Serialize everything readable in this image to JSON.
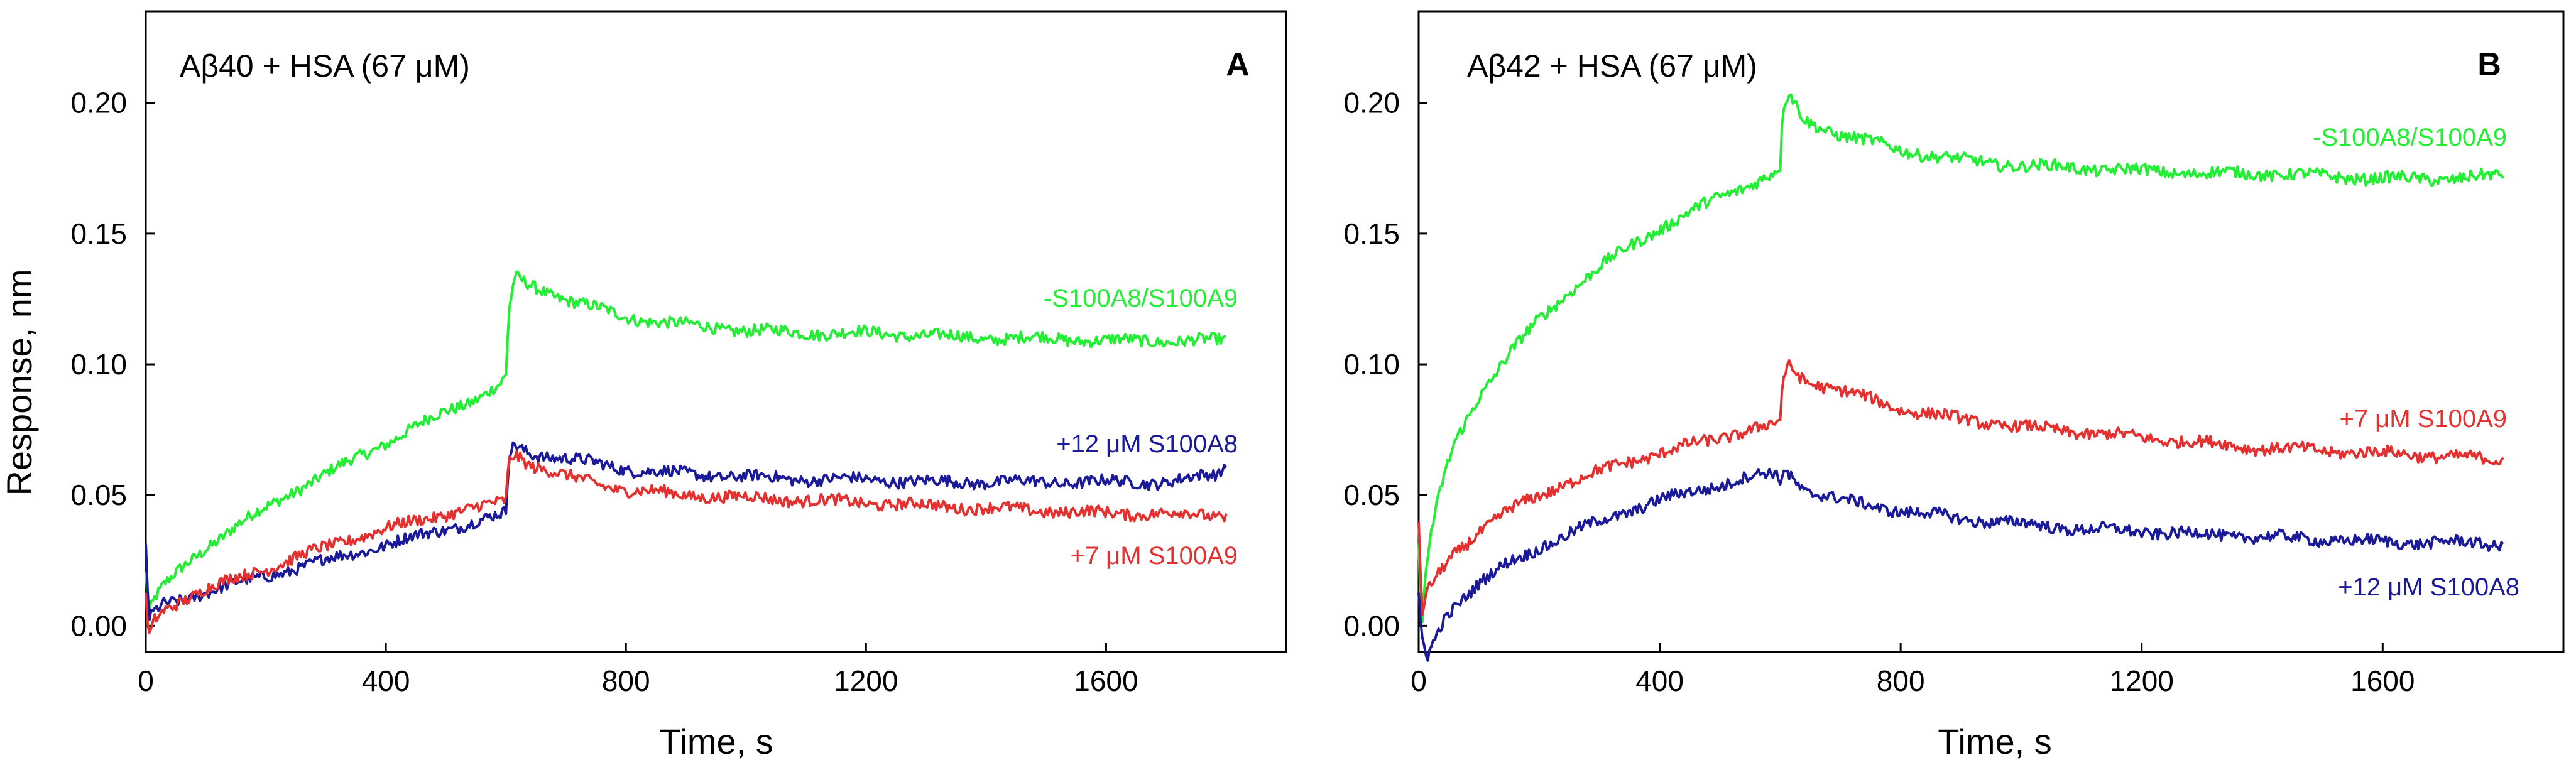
{
  "ylabel": "Response, nm",
  "xlabel": "Time, s",
  "colors": {
    "green": "#22ee33",
    "red": "#e53030",
    "blue": "#1a1a9a"
  },
  "chart_data": [
    {
      "type": "line",
      "panel": "A",
      "title": "Aβ40 + HSA (67 μM)",
      "xlabel": "Time, s",
      "ylabel": "Response, nm",
      "xlim": [
        0,
        1900
      ],
      "ylim": [
        -0.01,
        0.235
      ],
      "xticks": [
        0,
        400,
        800,
        1200,
        1600
      ],
      "yticks": [
        0.0,
        0.05,
        0.1,
        0.15,
        0.2
      ],
      "xtick_labels": [
        "0",
        "400",
        "800",
        "1200",
        "1600"
      ],
      "ytick_labels": [
        "0.00",
        "0.05",
        "0.10",
        "0.15",
        "0.20"
      ],
      "series": [
        {
          "name": "-S100A8/S100A9",
          "label": "-S100A8/S100A9",
          "color": "#22ee33",
          "x": [
            0,
            5,
            15,
            30,
            60,
            100,
            150,
            200,
            250,
            300,
            350,
            400,
            450,
            500,
            550,
            590,
            600,
            605,
            615,
            640,
            700,
            800,
            900,
            1000,
            1100,
            1200,
            1300,
            1400,
            1500,
            1600,
            1700,
            1800
          ],
          "y": [
            0.02,
            0.005,
            0.01,
            0.015,
            0.022,
            0.03,
            0.038,
            0.045,
            0.052,
            0.058,
            0.064,
            0.07,
            0.076,
            0.082,
            0.087,
            0.092,
            0.095,
            0.12,
            0.133,
            0.13,
            0.125,
            0.118,
            0.115,
            0.113,
            0.112,
            0.112,
            0.111,
            0.11,
            0.11,
            0.109,
            0.109,
            0.109
          ]
        },
        {
          "name": "+12 μM S100A8",
          "label": "+12 μM S100A8",
          "color": "#1a1a9a",
          "x": [
            0,
            5,
            15,
            30,
            60,
            100,
            150,
            200,
            250,
            300,
            350,
            400,
            450,
            500,
            550,
            590,
            600,
            605,
            615,
            640,
            700,
            800,
            900,
            1000,
            1100,
            1200,
            1300,
            1400,
            1500,
            1600,
            1700,
            1790,
            1800
          ],
          "y": [
            0.03,
            0.002,
            0.005,
            0.008,
            0.01,
            0.013,
            0.016,
            0.019,
            0.022,
            0.025,
            0.028,
            0.031,
            0.034,
            0.037,
            0.04,
            0.042,
            0.043,
            0.065,
            0.069,
            0.066,
            0.064,
            0.06,
            0.058,
            0.057,
            0.056,
            0.056,
            0.055,
            0.055,
            0.055,
            0.055,
            0.055,
            0.058,
            0.063
          ]
        },
        {
          "name": "+7 μM S100A9",
          "label": "+7 μM S100A9",
          "color": "#e53030",
          "x": [
            0,
            5,
            15,
            30,
            60,
            100,
            150,
            200,
            250,
            300,
            350,
            400,
            450,
            500,
            550,
            590,
            600,
            605,
            615,
            640,
            700,
            800,
            900,
            1000,
            1100,
            1200,
            1300,
            1400,
            1500,
            1600,
            1700,
            1800
          ],
          "y": [
            0.01,
            -0.005,
            0.002,
            0.006,
            0.01,
            0.014,
            0.018,
            0.022,
            0.026,
            0.03,
            0.034,
            0.037,
            0.04,
            0.043,
            0.045,
            0.047,
            0.048,
            0.063,
            0.066,
            0.062,
            0.057,
            0.052,
            0.05,
            0.049,
            0.048,
            0.047,
            0.046,
            0.045,
            0.044,
            0.043,
            0.043,
            0.042
          ]
        }
      ]
    },
    {
      "type": "line",
      "panel": "B",
      "title": "Aβ42 + HSA (67 μM)",
      "xlabel": "Time, s",
      "ylabel": "",
      "xlim": [
        0,
        1900
      ],
      "ylim": [
        -0.01,
        0.235
      ],
      "xticks": [
        0,
        400,
        800,
        1200,
        1600
      ],
      "yticks": [
        0.0,
        0.05,
        0.1,
        0.15,
        0.2
      ],
      "xtick_labels": [
        "0",
        "400",
        "800",
        "1200",
        "1600"
      ],
      "ytick_labels": [
        "0.00",
        "0.05",
        "0.10",
        "0.15",
        "0.20"
      ],
      "series": [
        {
          "name": "-S100A8/S100A9",
          "label": "-S100A8/S100A9",
          "color": "#22ee33",
          "x": [
            0,
            5,
            10,
            20,
            40,
            60,
            100,
            150,
            200,
            250,
            300,
            350,
            400,
            450,
            500,
            550,
            590,
            600,
            605,
            615,
            640,
            700,
            800,
            900,
            1000,
            1100,
            1200,
            1300,
            1400,
            1500,
            1600,
            1700,
            1800
          ],
          "y": [
            0.03,
            0.0,
            0.015,
            0.035,
            0.055,
            0.07,
            0.088,
            0.104,
            0.117,
            0.128,
            0.137,
            0.145,
            0.152,
            0.158,
            0.164,
            0.169,
            0.173,
            0.175,
            0.198,
            0.203,
            0.193,
            0.188,
            0.182,
            0.178,
            0.176,
            0.175,
            0.174,
            0.173,
            0.173,
            0.172,
            0.171,
            0.171,
            0.172
          ]
        },
        {
          "name": "+7 μM S100A9",
          "label": "+7 μM S100A9",
          "color": "#e53030",
          "x": [
            0,
            5,
            10,
            20,
            40,
            60,
            100,
            150,
            200,
            250,
            300,
            350,
            400,
            450,
            500,
            550,
            590,
            600,
            605,
            615,
            640,
            700,
            800,
            900,
            1000,
            1100,
            1200,
            1300,
            1400,
            1500,
            1600,
            1700,
            1800
          ],
          "y": [
            0.04,
            0.002,
            0.01,
            0.015,
            0.022,
            0.028,
            0.036,
            0.044,
            0.05,
            0.055,
            0.059,
            0.063,
            0.066,
            0.069,
            0.072,
            0.075,
            0.077,
            0.078,
            0.095,
            0.099,
            0.094,
            0.09,
            0.083,
            0.079,
            0.076,
            0.074,
            0.072,
            0.07,
            0.068,
            0.067,
            0.066,
            0.065,
            0.063
          ]
        },
        {
          "name": "+12 μM S100A8",
          "label": "+12 μM S100A8",
          "color": "#1a1a9a",
          "x": [
            0,
            5,
            15,
            25,
            40,
            60,
            100,
            150,
            200,
            250,
            300,
            350,
            400,
            450,
            500,
            550,
            590,
            600,
            605,
            615,
            640,
            700,
            800,
            900,
            1000,
            1100,
            1200,
            1300,
            1400,
            1500,
            1600,
            1700,
            1800
          ],
          "y": [
            0.01,
            -0.005,
            -0.012,
            -0.006,
            0.002,
            0.008,
            0.016,
            0.024,
            0.03,
            0.035,
            0.04,
            0.044,
            0.048,
            0.051,
            0.054,
            0.057,
            0.058,
            0.055,
            0.06,
            0.058,
            0.052,
            0.048,
            0.044,
            0.041,
            0.039,
            0.037,
            0.036,
            0.035,
            0.034,
            0.033,
            0.032,
            0.032,
            0.031
          ]
        }
      ]
    }
  ]
}
